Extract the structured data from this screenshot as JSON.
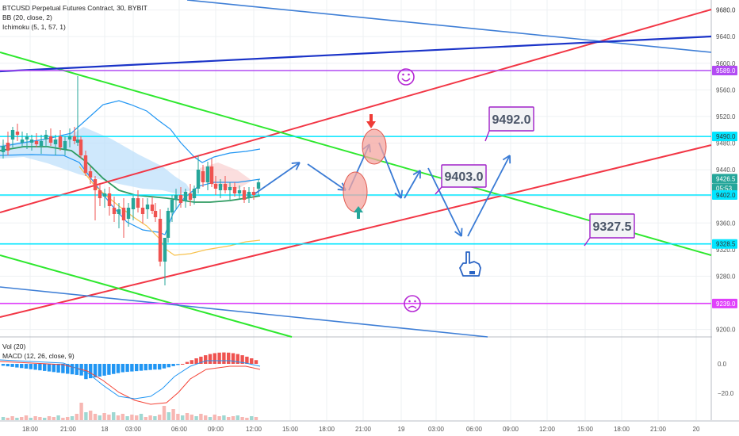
{
  "chart_data": {
    "type": "line",
    "title": "BTCUSD Perpetual Futures Contract, 30, BYBIT",
    "indicators": [
      "BB (20, close, 2)",
      "Ichimoku (5, 1, 57, 1)"
    ],
    "lower_pane_labels": [
      "Vol (20)",
      "MACD (12, 26, close, 9)"
    ],
    "y_axis": {
      "ylim": [
        9190,
        9695
      ],
      "ticks": [
        9680,
        9640,
        9600,
        9560,
        9520,
        9480,
        9440,
        9400,
        9360,
        9320,
        9280,
        9240,
        9200
      ],
      "tick_labels": [
        "9680.0",
        "9640.0",
        "9600.0",
        "9560.0",
        "9520.0",
        "9480.0",
        "9440.0",
        "9400.0",
        "9360.0",
        "9320.0",
        "9280.0",
        "9240.0",
        "9200.0"
      ]
    },
    "lower_y_axis": {
      "tick_labels": [
        "0.0",
        "−20.0"
      ],
      "ticks": [
        0,
        -20
      ]
    },
    "x_axis": {
      "tick_labels": [
        "18:00",
        "21:00",
        "18",
        "03:00",
        "06:00",
        "09:00",
        "12:00",
        "15:00",
        "18:00",
        "21:00",
        "19",
        "03:00",
        "06:00",
        "09:00",
        "12:00",
        "15:00",
        "18:00",
        "21:00",
        "20"
      ]
    },
    "price_labels": [
      {
        "text": "9680.0",
        "value": 9680,
        "bg": "#ffffff",
        "fg": "#333333"
      },
      {
        "text": "9589.0",
        "value": 9589,
        "bg": "#b24bf3",
        "fg": "#ffffff"
      },
      {
        "text": "9490.0",
        "value": 9490,
        "bg": "#00e5ff",
        "fg": "#333333"
      },
      {
        "text": "9426.5",
        "value": 9426.5,
        "bg": "#26a69a",
        "fg": "#ffffff"
      },
      {
        "text": "05:53",
        "value": 9412,
        "bg": "#26a69a",
        "fg": "#ffffff"
      },
      {
        "text": "9402.0",
        "value": 9402,
        "bg": "#00e5ff",
        "fg": "#333333"
      },
      {
        "text": "9328.5",
        "value": 9328.5,
        "bg": "#00e5ff",
        "fg": "#333333"
      },
      {
        "text": "9239.0",
        "value": 9239,
        "bg": "#e040fb",
        "fg": "#ffffff"
      }
    ],
    "horizontal_levels": [
      {
        "value": 9589,
        "color": "#b24bf3"
      },
      {
        "value": 9490,
        "color": "#00e5ff"
      },
      {
        "value": 9402,
        "color": "#00e5ff"
      },
      {
        "value": 9328.5,
        "color": "#00e5ff"
      },
      {
        "value": 9239,
        "color": "#e040fb"
      }
    ],
    "annotations": [
      {
        "text": "9492.0",
        "value": 9492.0
      },
      {
        "text": "9403.0",
        "value": 9403.0
      },
      {
        "text": "9327.5",
        "value": 9327.5
      }
    ],
    "colors": {
      "up": "#26a69a",
      "down": "#ef5350",
      "bb": "#2196f3",
      "trend_red": "#f23645",
      "trend_green": "#2ee82e",
      "trend_blue": "#3f7fd6",
      "trend_navy": "#1a33c8",
      "arrows": "#3a7bd5"
    }
  }
}
